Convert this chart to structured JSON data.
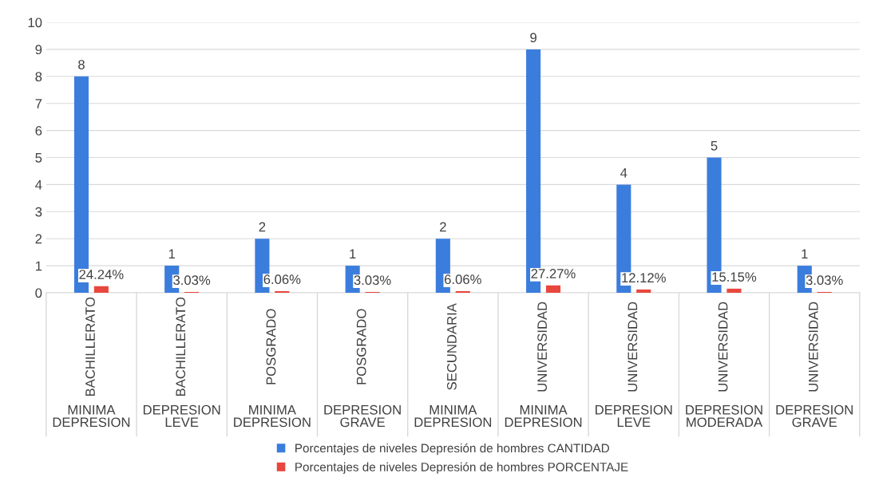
{
  "chart_data": {
    "type": "bar",
    "categories": [
      "BACHILLERATO\nMINIMA\nDEPRESION",
      "BACHILLERATO\nDEPRESION\nLEVE",
      "POSGRADO\nMINIMA\nDEPRESION",
      "POSGRADO\nDEPRESION\nGRAVE",
      "SECUNDARIA\nMINIMA\nDEPRESION",
      "UNIVERSIDAD\nMINIMA\nDEPRESION",
      "UNIVERSIDAD\nDEPRESION\nLEVE",
      "UNIVERSIDAD\nDEPRESION\nMODERADA",
      "UNIVERSIDAD\nDEPRESION\nGRAVE"
    ],
    "series": [
      {
        "name": "Porcentajes de niveles Depresión de hombres CANTIDAD",
        "color": "#3b7ddd",
        "values": [
          8,
          1,
          2,
          1,
          2,
          9,
          4,
          5,
          1
        ],
        "value_labels": [
          "8",
          "1",
          "2",
          "1",
          "2",
          "9",
          "4",
          "5",
          "1"
        ]
      },
      {
        "name": "Porcentajes de niveles Depresión de hombres PORCENTAJE",
        "color": "#e8473e",
        "values": [
          0.2424,
          0.0303,
          0.0606,
          0.0303,
          0.0606,
          0.2727,
          0.1212,
          0.1515,
          0.0303
        ],
        "value_labels": [
          "24.24%",
          "3.03%",
          "6.06%",
          "3.03%",
          "6.06%",
          "27.27%",
          "12.12%",
          "15.15%",
          "3.03%"
        ]
      }
    ],
    "ylim": [
      0,
      10
    ],
    "yticks": [
      0,
      1,
      2,
      3,
      4,
      5,
      6,
      7,
      8,
      9,
      10
    ],
    "grid": "y",
    "legend": "bottom"
  }
}
